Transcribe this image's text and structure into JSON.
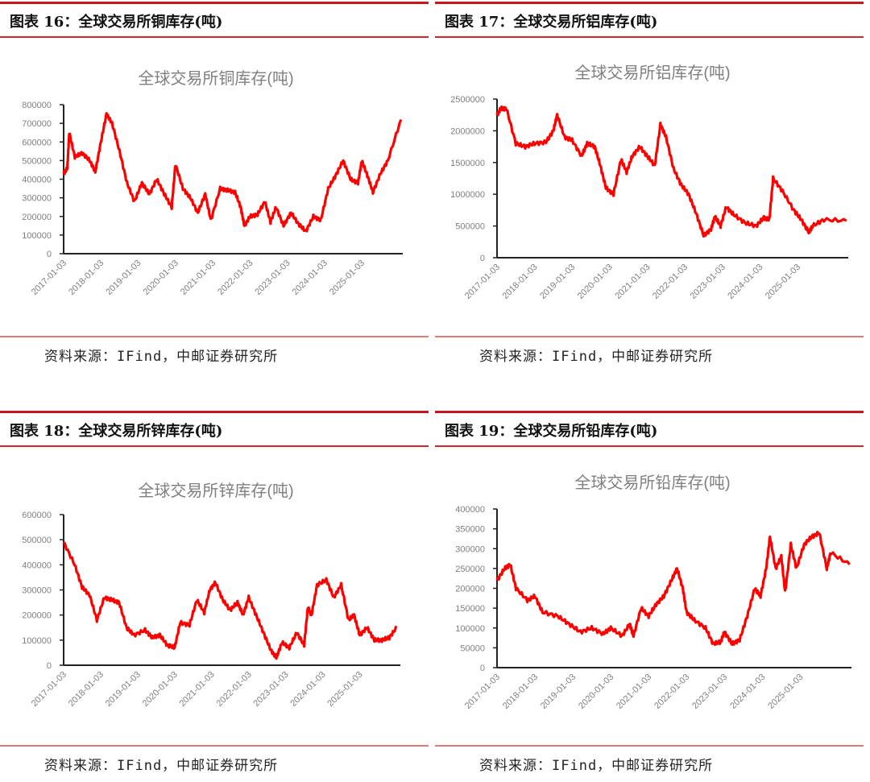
{
  "figures": [
    {
      "label": "图表 16：全球交易所铜库存(吨)",
      "source": "资料来源：IFind，中邮证券研究所"
    },
    {
      "label": "图表 17：全球交易所铝库存(吨)",
      "source": "资料来源：IFind，中邮证券研究所"
    },
    {
      "label": "图表 18：全球交易所锌库存(吨)",
      "source": "资料来源：IFind，中邮证券研究所"
    },
    {
      "label": "图表 19：全球交易所铅库存(吨)",
      "source": "资料来源：IFind，中邮证券研究所"
    }
  ],
  "chart_data": [
    {
      "type": "line",
      "title": "全球交易所铜库存(吨)",
      "xlabel": "",
      "ylabel": "",
      "color": "#ff0000",
      "grid": false,
      "legend": "none",
      "ylim": [
        0,
        800000
      ],
      "yticks": [
        0,
        100000,
        200000,
        300000,
        400000,
        500000,
        600000,
        700000,
        800000
      ],
      "xlim": [
        2017.0,
        2026.1
      ],
      "xticks": [
        "2017-01-03",
        "2018-01-03",
        "2019-01-03",
        "2020-01-03",
        "2021-01-03",
        "2022-01-03",
        "2023-01-03",
        "2024-01-03",
        "2025-01-03"
      ],
      "x": [
        2017.0,
        2017.1,
        2017.15,
        2017.3,
        2017.5,
        2017.7,
        2017.85,
        2018.0,
        2018.15,
        2018.3,
        2018.5,
        2018.7,
        2018.9,
        2019.1,
        2019.3,
        2019.5,
        2019.7,
        2019.9,
        2020.0,
        2020.2,
        2020.4,
        2020.6,
        2020.8,
        2020.95,
        2021.2,
        2021.4,
        2021.6,
        2021.75,
        2021.85,
        2022.0,
        2022.2,
        2022.4,
        2022.55,
        2022.7,
        2022.9,
        2023.1,
        2023.3,
        2023.5,
        2023.7,
        2023.9,
        2024.1,
        2024.3,
        2024.5,
        2024.7,
        2024.9,
        2025.0,
        2025.15,
        2025.3,
        2025.5,
        2025.7,
        2026.05
      ],
      "y": [
        430000,
        460000,
        650000,
        520000,
        540000,
        500000,
        440000,
        600000,
        750000,
        700000,
        550000,
        380000,
        280000,
        380000,
        320000,
        400000,
        320000,
        250000,
        480000,
        350000,
        300000,
        220000,
        320000,
        180000,
        350000,
        340000,
        330000,
        250000,
        150000,
        200000,
        210000,
        280000,
        170000,
        250000,
        150000,
        220000,
        160000,
        120000,
        200000,
        180000,
        350000,
        420000,
        500000,
        400000,
        380000,
        500000,
        420000,
        330000,
        430000,
        500000,
        720000
      ]
    },
    {
      "type": "line",
      "title": "全球交易所铝库存(吨)",
      "xlabel": "",
      "ylabel": "",
      "color": "#ff0000",
      "grid": false,
      "legend": "none",
      "ylim": [
        0,
        2500000
      ],
      "yticks": [
        0,
        500000,
        1000000,
        1500000,
        2000000,
        2500000
      ],
      "xlim": [
        2017.0,
        2026.35
      ],
      "xticks": [
        "2017-01-03",
        "2018-01-03",
        "2019-01-03",
        "2020-01-03",
        "2021-01-03",
        "2022-01-03",
        "2023-01-03",
        "2024-01-03",
        "2025-01-03"
      ],
      "x": [
        2017.0,
        2017.1,
        2017.25,
        2017.5,
        2017.75,
        2018.0,
        2018.3,
        2018.5,
        2018.6,
        2018.8,
        2019.0,
        2019.25,
        2019.4,
        2019.6,
        2019.75,
        2019.9,
        2020.1,
        2020.3,
        2020.45,
        2020.6,
        2020.8,
        2021.0,
        2021.2,
        2021.35,
        2021.5,
        2021.7,
        2021.9,
        2022.1,
        2022.3,
        2022.5,
        2022.7,
        2022.8,
        2022.95,
        2023.1,
        2023.3,
        2023.6,
        2023.9,
        2024.1,
        2024.25,
        2024.35,
        2024.6,
        2024.9,
        2025.1,
        2025.3,
        2025.4,
        2025.7,
        2026.3
      ],
      "y": [
        2250000,
        2350000,
        2350000,
        1800000,
        1750000,
        1800000,
        1820000,
        2000000,
        2250000,
        1900000,
        1850000,
        1600000,
        1800000,
        1750000,
        1450000,
        1100000,
        1000000,
        1550000,
        1350000,
        1600000,
        1750000,
        1600000,
        1450000,
        2100000,
        1900000,
        1400000,
        1150000,
        1000000,
        700000,
        350000,
        450000,
        650000,
        500000,
        800000,
        680000,
        550000,
        500000,
        630000,
        600000,
        1250000,
        1050000,
        750000,
        600000,
        400000,
        500000,
        600000,
        580000
      ]
    },
    {
      "type": "line",
      "title": "全球交易所锌库存(吨)",
      "xlabel": "",
      "ylabel": "",
      "color": "#ff0000",
      "grid": false,
      "legend": "none",
      "ylim": [
        0,
        600000
      ],
      "yticks": [
        0,
        100000,
        200000,
        300000,
        400000,
        500000,
        600000
      ],
      "xlim": [
        2017.0,
        2026.1
      ],
      "xticks": [
        "2017-01-03",
        "2018-01-03",
        "2019-01-03",
        "2020-01-03",
        "2021-01-03",
        "2022-01-03",
        "2023-01-03",
        "2024-01-03",
        "2025-01-03"
      ],
      "x": [
        2017.0,
        2017.3,
        2017.5,
        2017.7,
        2017.9,
        2018.1,
        2018.3,
        2018.5,
        2018.7,
        2018.9,
        2019.2,
        2019.4,
        2019.6,
        2019.8,
        2020.0,
        2020.15,
        2020.4,
        2020.6,
        2020.8,
        2020.95,
        2021.1,
        2021.3,
        2021.5,
        2021.7,
        2021.85,
        2022.0,
        2022.2,
        2022.4,
        2022.6,
        2022.75,
        2022.9,
        2023.1,
        2023.3,
        2023.5,
        2023.6,
        2023.7,
        2023.85,
        2024.1,
        2024.3,
        2024.5,
        2024.7,
        2024.85,
        2025.0,
        2025.2,
        2025.4,
        2025.6,
        2025.8,
        2026.0
      ],
      "y": [
        490000,
        400000,
        310000,
        280000,
        180000,
        270000,
        260000,
        250000,
        150000,
        120000,
        140000,
        110000,
        120000,
        80000,
        70000,
        170000,
        160000,
        260000,
        210000,
        300000,
        330000,
        260000,
        220000,
        250000,
        200000,
        270000,
        200000,
        130000,
        60000,
        30000,
        90000,
        70000,
        130000,
        80000,
        230000,
        200000,
        320000,
        340000,
        270000,
        320000,
        180000,
        200000,
        120000,
        150000,
        100000,
        100000,
        110000,
        150000
      ]
    },
    {
      "type": "line",
      "title": "全球交易所铅库存(吨)",
      "xlabel": "",
      "ylabel": "",
      "color": "#ff0000",
      "grid": false,
      "legend": "none",
      "ylim": [
        0,
        400000
      ],
      "yticks": [
        0,
        50000,
        100000,
        150000,
        200000,
        250000,
        300000,
        350000,
        400000
      ],
      "xlim": [
        2017.0,
        2026.35
      ],
      "xticks": [
        "2017-01-03",
        "2018-01-03",
        "2019-01-03",
        "2020-01-03",
        "2021-01-03",
        "2022-01-03",
        "2023-01-03",
        "2024-01-03",
        "2025-01-03"
      ],
      "x": [
        2017.0,
        2017.2,
        2017.35,
        2017.5,
        2017.8,
        2018.0,
        2018.2,
        2018.6,
        2018.9,
        2019.2,
        2019.5,
        2019.8,
        2020.0,
        2020.3,
        2020.5,
        2020.6,
        2020.8,
        2021.0,
        2021.2,
        2021.4,
        2021.6,
        2021.75,
        2021.9,
        2022.0,
        2022.2,
        2022.5,
        2022.7,
        2022.9,
        2023.0,
        2023.2,
        2023.4,
        2023.6,
        2023.8,
        2023.95,
        2024.1,
        2024.2,
        2024.35,
        2024.5,
        2024.6,
        2024.75,
        2024.9,
        2025.1,
        2025.3,
        2025.5,
        2025.7,
        2025.8,
        2026.3
      ],
      "y": [
        220000,
        250000,
        260000,
        200000,
        170000,
        180000,
        140000,
        130000,
        110000,
        90000,
        100000,
        85000,
        100000,
        80000,
        110000,
        80000,
        150000,
        130000,
        160000,
        180000,
        220000,
        250000,
        200000,
        140000,
        120000,
        100000,
        60000,
        65000,
        90000,
        60000,
        70000,
        130000,
        200000,
        180000,
        250000,
        330000,
        250000,
        280000,
        190000,
        310000,
        250000,
        310000,
        330000,
        340000,
        250000,
        290000,
        260000
      ]
    }
  ]
}
